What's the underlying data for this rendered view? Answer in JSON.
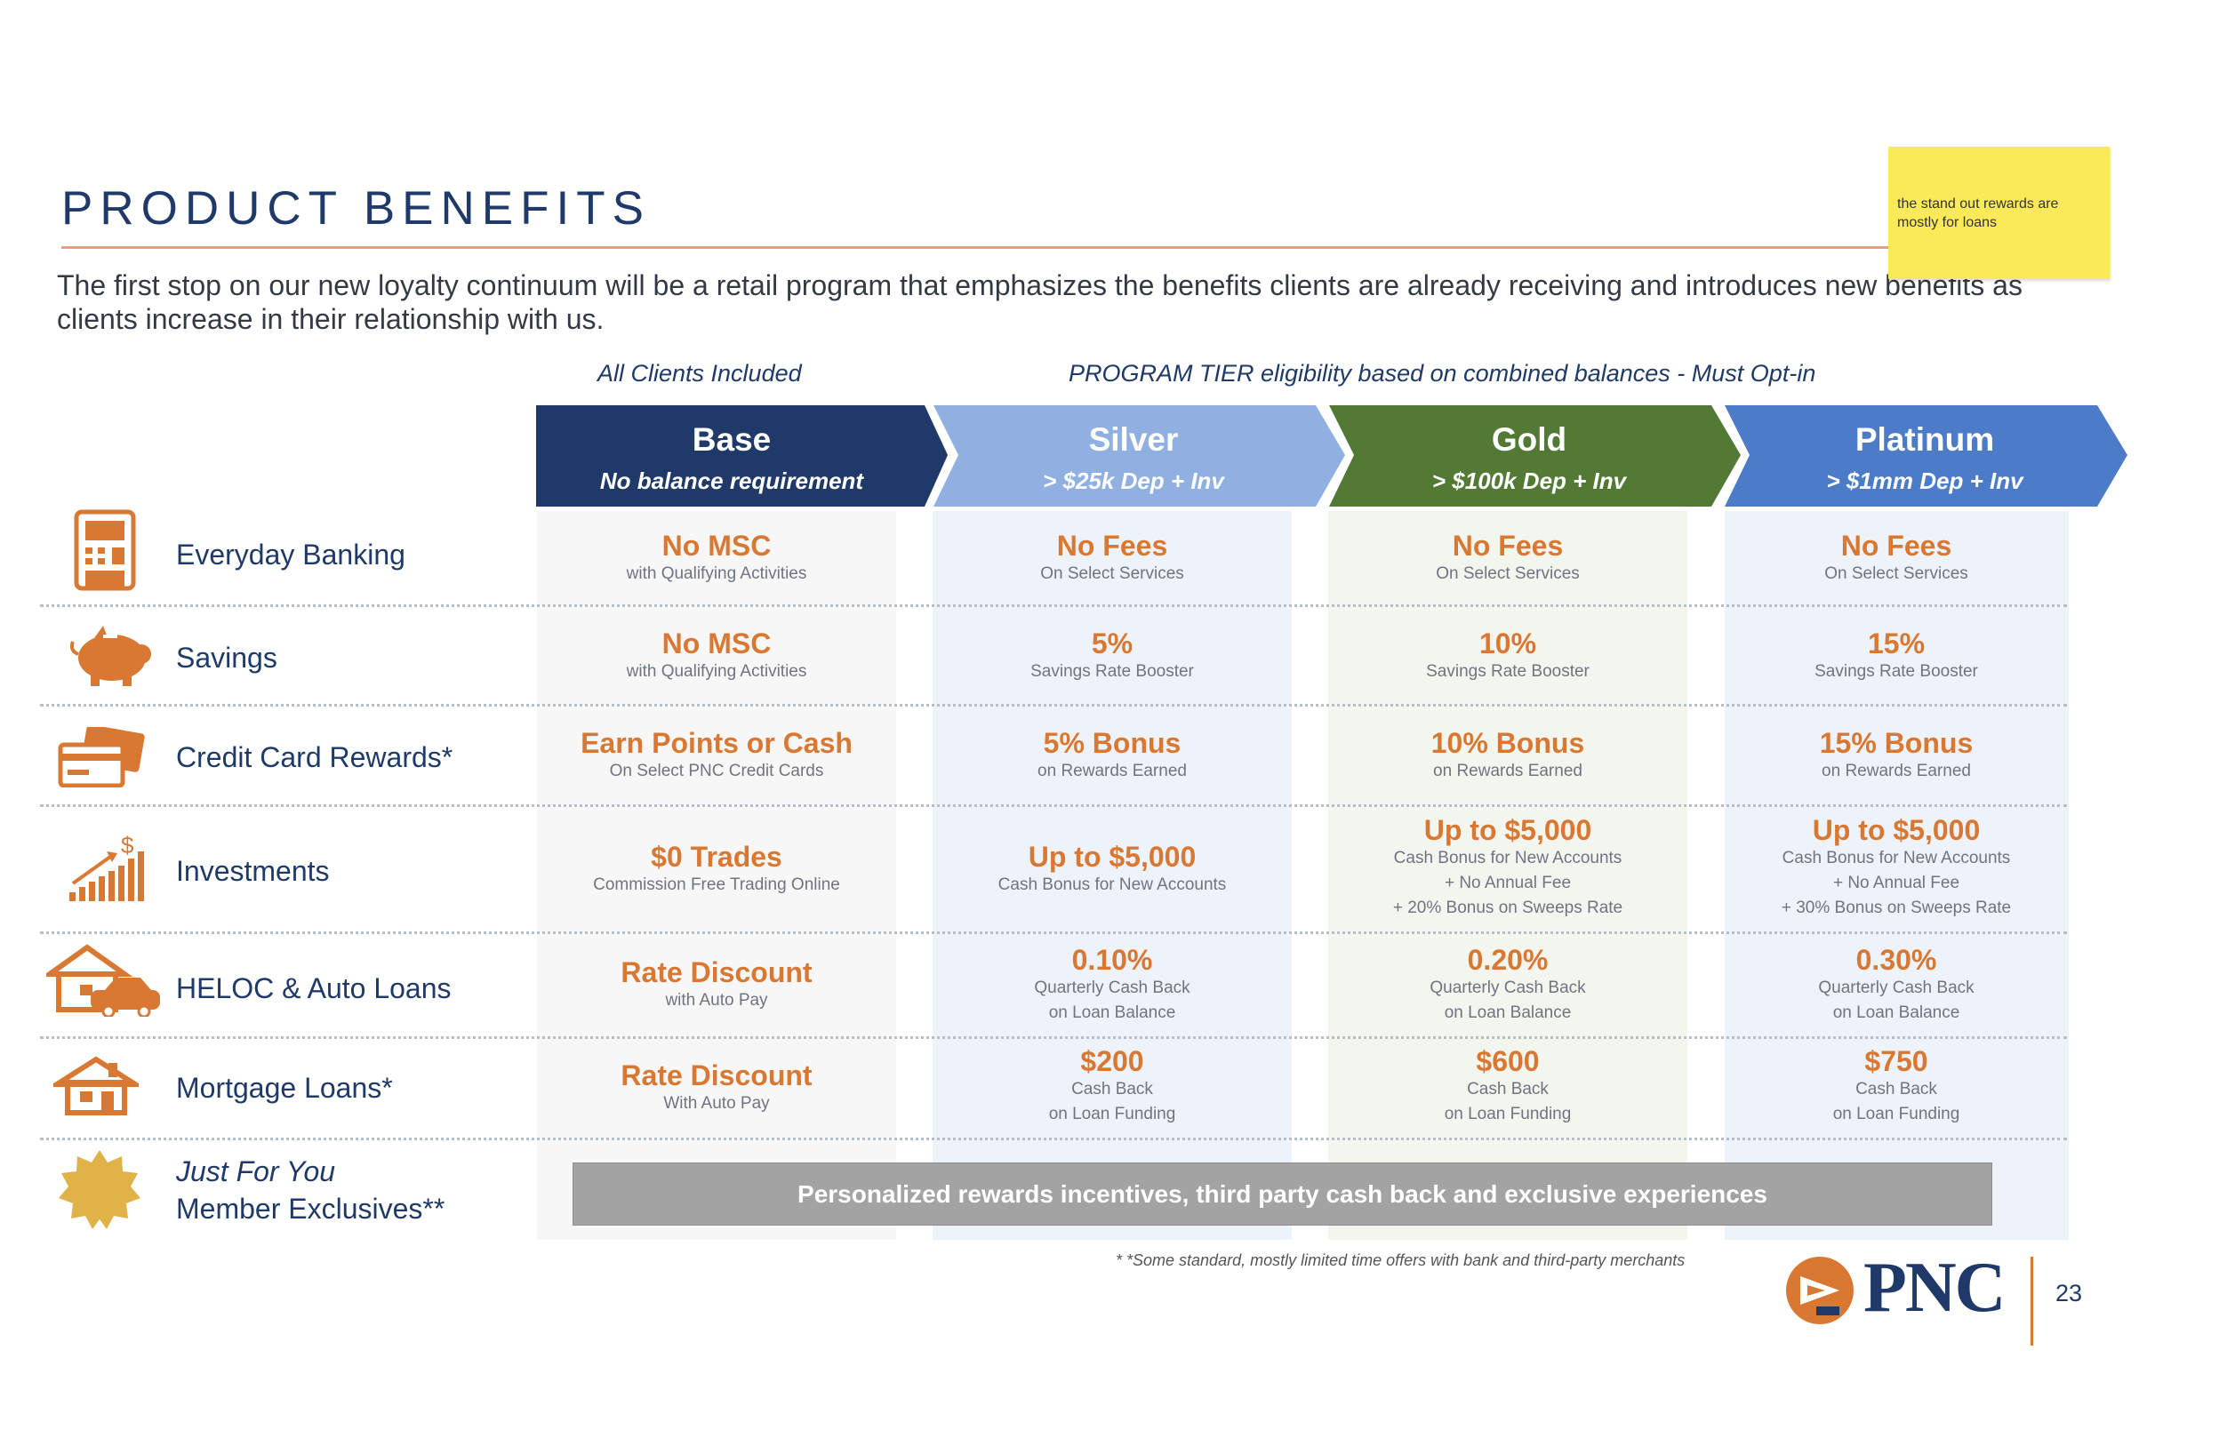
{
  "title": "PRODUCT BENEFITS",
  "subtitle": "The first stop on our new loyalty continuum will be a retail program that emphasizes the benefits clients are already receiving and introduces new benefits as clients increase in their relationship with us.",
  "sticky_note": "the stand out rewards are mostly for loans",
  "tier_labels": {
    "all_clients": "All Clients Included",
    "program": "PROGRAM TIER eligibility based on combined balances -  Must Opt-in"
  },
  "tiers": [
    {
      "name": "Base",
      "requirement": "No balance requirement",
      "color": "#1f3a68"
    },
    {
      "name": "Silver",
      "requirement": "> $25k Dep + Inv",
      "color": "#8fb0e0"
    },
    {
      "name": "Gold",
      "requirement": "> $100k Dep + Inv",
      "color": "#527a34"
    },
    {
      "name": "Platinum",
      "requirement": "> $1mm Dep + Inv",
      "color": "#4c7cc8"
    }
  ],
  "rows": [
    {
      "label": "Everyday Banking",
      "icon": "atm-icon",
      "cells": [
        {
          "main": "No MSC",
          "sub": [
            "with Qualifying Activities"
          ]
        },
        {
          "main": "No Fees",
          "sub": [
            "On Select Services"
          ]
        },
        {
          "main": "No Fees",
          "sub": [
            "On Select Services"
          ]
        },
        {
          "main": "No Fees",
          "sub": [
            "On Select Services"
          ]
        }
      ]
    },
    {
      "label": "Savings",
      "icon": "piggy-bank-icon",
      "cells": [
        {
          "main": "No MSC",
          "sub": [
            "with Qualifying Activities"
          ]
        },
        {
          "main": "5%",
          "sub": [
            "Savings Rate Booster"
          ]
        },
        {
          "main": "10%",
          "sub": [
            "Savings Rate Booster"
          ]
        },
        {
          "main": "15%",
          "sub": [
            "Savings Rate Booster"
          ]
        }
      ]
    },
    {
      "label": "Credit Card Rewards*",
      "icon": "credit-card-icon",
      "cells": [
        {
          "main": "Earn Points or Cash",
          "sub": [
            "On  Select PNC Credit Cards"
          ]
        },
        {
          "main": "5% Bonus",
          "sub": [
            "on Rewards Earned"
          ]
        },
        {
          "main": "10% Bonus",
          "sub": [
            "on Rewards Earned"
          ]
        },
        {
          "main": "15% Bonus",
          "sub": [
            "on Rewards Earned"
          ]
        }
      ]
    },
    {
      "label": "Investments",
      "icon": "growth-chart-icon",
      "cells": [
        {
          "main": "$0 Trades",
          "sub": [
            "Commission Free Trading Online"
          ]
        },
        {
          "main": "Up to $5,000",
          "sub": [
            "Cash Bonus for New Accounts"
          ]
        },
        {
          "main": "Up to $5,000",
          "sub": [
            "Cash Bonus for New Accounts",
            "+ No Annual Fee",
            "+ 20% Bonus on Sweeps Rate"
          ]
        },
        {
          "main": "Up to $5,000",
          "sub": [
            "Cash Bonus for New Accounts",
            "+ No Annual Fee",
            "+ 30% Bonus on Sweeps Rate"
          ]
        }
      ]
    },
    {
      "label": "HELOC & Auto Loans",
      "icon": "house-car-icon",
      "cells": [
        {
          "main": "Rate Discount",
          "sub": [
            "with Auto Pay"
          ]
        },
        {
          "main": "0.10%",
          "sub": [
            "Quarterly Cash Back",
            "on Loan Balance"
          ]
        },
        {
          "main": "0.20%",
          "sub": [
            "Quarterly Cash Back",
            "on Loan Balance"
          ]
        },
        {
          "main": "0.30%",
          "sub": [
            "Quarterly Cash Back",
            "on Loan Balance"
          ]
        }
      ]
    },
    {
      "label": "Mortgage Loans*",
      "icon": "house-icon",
      "cells": [
        {
          "main": "Rate Discount",
          "sub": [
            "With Auto Pay"
          ]
        },
        {
          "main": "$200",
          "sub": [
            "Cash Back",
            "on Loan Funding"
          ]
        },
        {
          "main": "$600",
          "sub": [
            "Cash Back",
            "on Loan Funding"
          ]
        },
        {
          "main": "$750",
          "sub": [
            "Cash Back",
            "on Loan Funding"
          ]
        }
      ]
    }
  ],
  "exclusives": {
    "label_line1": "Just For You",
    "label_line2": "Member Exclusives**",
    "icon": "gold-seal-icon",
    "bar_text": "Personalized rewards incentives, third party cash back and exclusive experiences"
  },
  "footnote": "* *Some standard, mostly limited time offers with bank and third-party merchants",
  "brand": {
    "name": "PNC",
    "icon": "pnc-logo-icon",
    "accent": "#d97832"
  },
  "page_number": "23"
}
